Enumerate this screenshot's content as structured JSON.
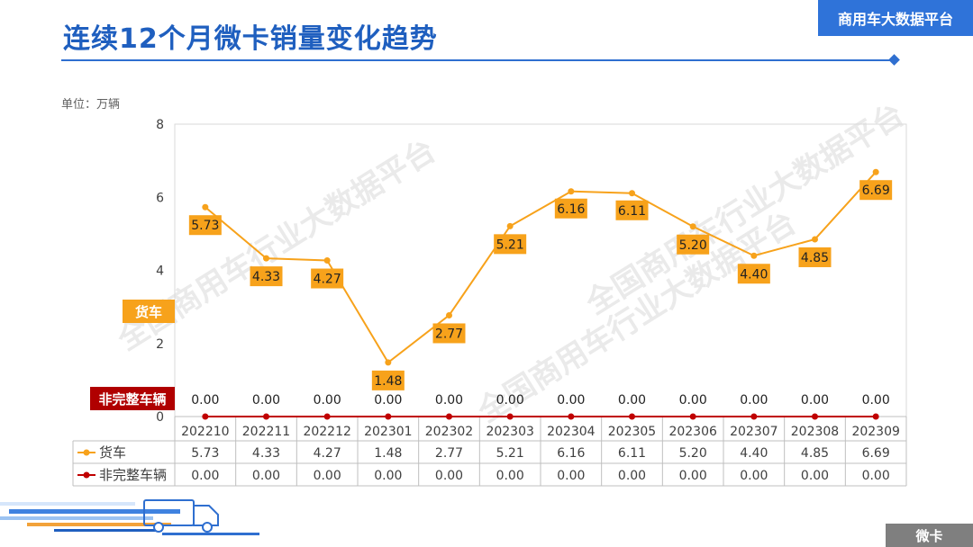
{
  "header": {
    "title": "连续12个月微卡销量变化趋势",
    "brand": "商用车大数据平台"
  },
  "unit_label": "单位：万辆",
  "watermark": "全国商用车行业大数据平台",
  "footer_tag": "微卡",
  "colors": {
    "accent": "#2f73d9",
    "title": "#1f5fbf",
    "series_truck": "#f7a21b",
    "series_incomplete": "#c00000",
    "label_bg": "#f7a21b",
    "side_label_incomplete_bg": "#b00000"
  },
  "chart_data": {
    "type": "line",
    "categories": [
      "202210",
      "202211",
      "202212",
      "202301",
      "202302",
      "202303",
      "202304",
      "202305",
      "202306",
      "202307",
      "202308",
      "202309"
    ],
    "series": [
      {
        "name": "货车",
        "values": [
          5.73,
          4.33,
          4.27,
          1.48,
          2.77,
          5.21,
          6.16,
          6.11,
          5.2,
          4.4,
          4.85,
          6.69
        ]
      },
      {
        "name": "非完整车辆",
        "values": [
          0.0,
          0.0,
          0.0,
          0.0,
          0.0,
          0.0,
          0.0,
          0.0,
          0.0,
          0.0,
          0.0,
          0.0
        ]
      }
    ],
    "ylim": [
      0,
      8
    ],
    "yticks": [
      "0",
      "2",
      "4",
      "6",
      "8"
    ],
    "truck_labels": [
      "5.73",
      "4.33",
      "4.27",
      "1.48",
      "2.77",
      "5.21",
      "6.16",
      "6.11",
      "5.20",
      "4.40",
      "4.85",
      "6.69"
    ],
    "incomplete_labels": [
      "0.00",
      "0.00",
      "0.00",
      "0.00",
      "0.00",
      "0.00",
      "0.00",
      "0.00",
      "0.00",
      "0.00",
      "0.00",
      "0.00"
    ],
    "grid": false,
    "legend": "data-table"
  }
}
